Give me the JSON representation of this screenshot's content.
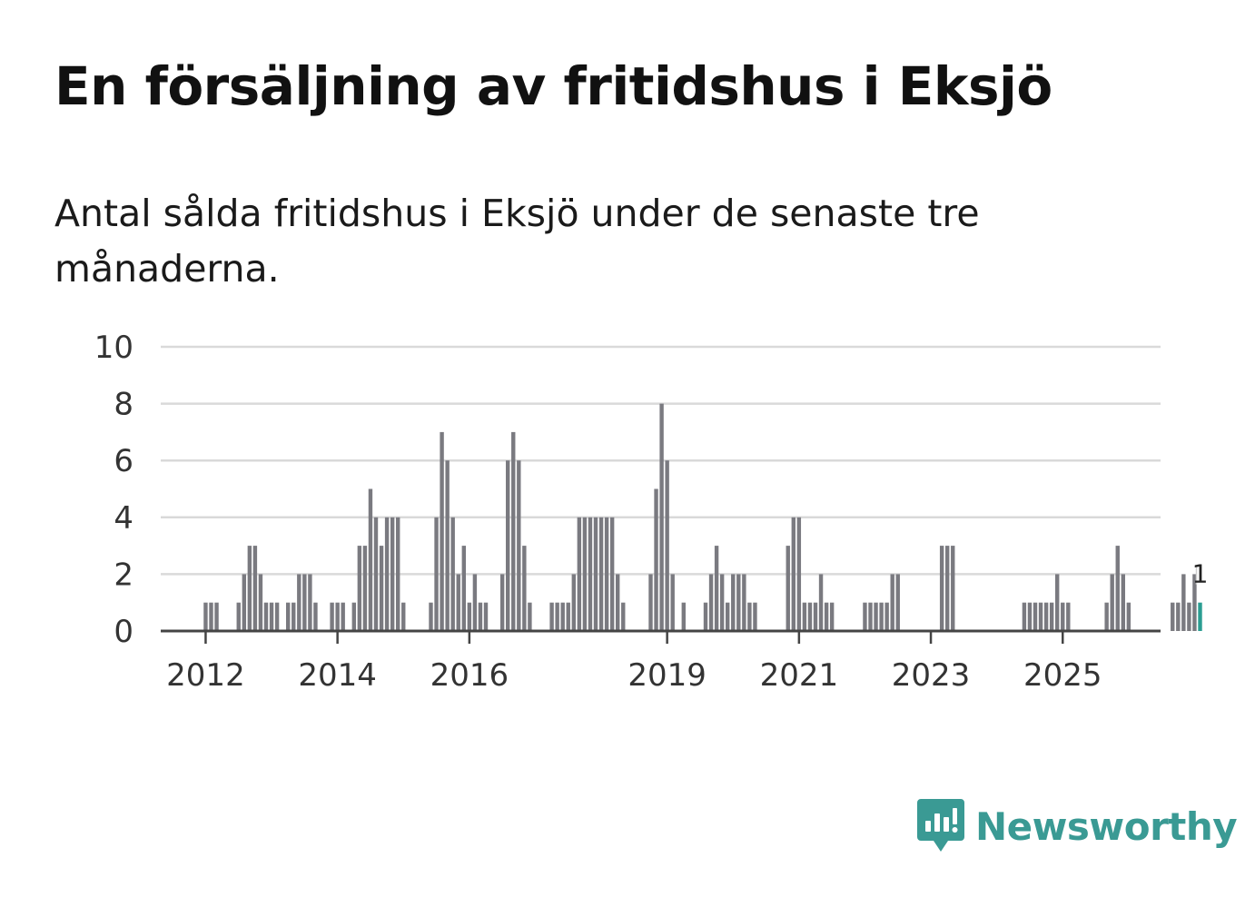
{
  "title": "En försäljning av fritidshus i Eksjö",
  "subtitle": "Antal sålda fritidshus i Eksjö under de senaste tre månaderna.",
  "brand": {
    "name": "Newsworthy",
    "color": "#3a9a94"
  },
  "colors": {
    "bar": "#7a7a80",
    "highlight": "#2a9d92",
    "grid": "#d9d9d9",
    "axis": "#444444"
  },
  "chart_data": {
    "type": "bar",
    "title": "Antal sålda fritidshus i Eksjö",
    "xlabel": "",
    "ylabel": "",
    "ylim": [
      0,
      10
    ],
    "y_ticks": [
      0,
      2,
      4,
      6,
      8,
      10
    ],
    "x_tick_labels": [
      "2012",
      "2014",
      "2016",
      "2019",
      "2021",
      "2023",
      "2025"
    ],
    "x_tick_months": [
      9,
      33,
      57,
      93,
      117,
      141,
      165
    ],
    "start_month": "2011-01",
    "highlight_label": "1",
    "values": [
      0,
      0,
      0,
      0,
      0,
      0,
      0,
      0,
      0,
      1,
      1,
      1,
      0,
      0,
      0,
      1,
      2,
      3,
      3,
      2,
      1,
      1,
      1,
      0,
      1,
      1,
      2,
      2,
      2,
      1,
      0,
      0,
      1,
      1,
      1,
      0,
      1,
      3,
      3,
      5,
      4,
      3,
      4,
      4,
      4,
      1,
      0,
      0,
      0,
      0,
      1,
      4,
      7,
      6,
      4,
      2,
      3,
      1,
      2,
      1,
      1,
      0,
      0,
      2,
      6,
      7,
      6,
      3,
      1,
      0,
      0,
      0,
      1,
      1,
      1,
      1,
      2,
      4,
      4,
      4,
      4,
      4,
      4,
      4,
      2,
      1,
      0,
      0,
      0,
      0,
      2,
      5,
      8,
      6,
      2,
      0,
      1,
      0,
      0,
      0,
      1,
      2,
      3,
      2,
      1,
      2,
      2,
      2,
      1,
      1,
      0,
      0,
      0,
      0,
      0,
      3,
      4,
      4,
      1,
      1,
      1,
      2,
      1,
      1,
      0,
      0,
      0,
      0,
      0,
      1,
      1,
      1,
      1,
      1,
      2,
      2,
      0,
      0,
      0,
      0,
      0,
      0,
      0,
      3,
      3,
      3,
      0,
      0,
      0,
      0,
      0,
      0,
      0,
      0,
      0,
      0,
      0,
      0,
      1,
      1,
      1,
      1,
      1,
      1,
      2,
      1,
      1,
      0,
      0,
      0,
      0,
      0,
      0,
      1,
      2,
      3,
      2,
      1,
      0,
      0,
      0,
      0,
      0,
      0,
      0,
      1,
      1,
      2,
      1,
      2,
      1
    ]
  }
}
